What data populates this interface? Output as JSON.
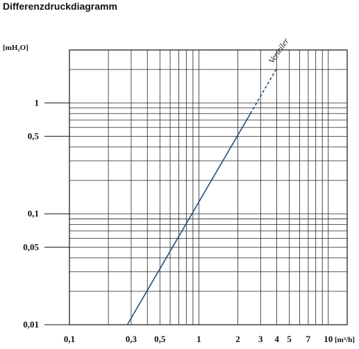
{
  "chart_data": {
    "type": "line",
    "title": "Differenzdruckdiagramm",
    "xlabel": "[m³/h]",
    "ylabel": "[mH₂O]",
    "xscale": "log",
    "yscale": "log",
    "xlim": [
      0.1,
      14
    ],
    "ylim": [
      0.01,
      3
    ],
    "grid": true,
    "x_ticks": [
      {
        "value": 0.1,
        "label": "0,1"
      },
      {
        "value": 0.3,
        "label": "0,3"
      },
      {
        "value": 0.5,
        "label": "0,5"
      },
      {
        "value": 1,
        "label": "1"
      },
      {
        "value": 2,
        "label": "2"
      },
      {
        "value": 3,
        "label": "3"
      },
      {
        "value": 4,
        "label": "4"
      },
      {
        "value": 5,
        "label": "5"
      },
      {
        "value": 7,
        "label": "7"
      },
      {
        "value": 10,
        "label": "10"
      }
    ],
    "y_ticks": [
      {
        "value": 0.01,
        "label": "0,01"
      },
      {
        "value": 0.05,
        "label": "0,05"
      },
      {
        "value": 0.1,
        "label": "0,1"
      },
      {
        "value": 0.5,
        "label": "0,5"
      },
      {
        "value": 1,
        "label": "1"
      }
    ],
    "series": [
      {
        "name": "Verteiler",
        "color": "#1f4e79",
        "solid": {
          "x": [
            0.28,
            2.5
          ],
          "y": [
            0.01,
            0.8
          ]
        },
        "dashed": {
          "x": [
            2.5,
            4.0
          ],
          "y": [
            0.8,
            2.05
          ]
        }
      }
    ]
  }
}
